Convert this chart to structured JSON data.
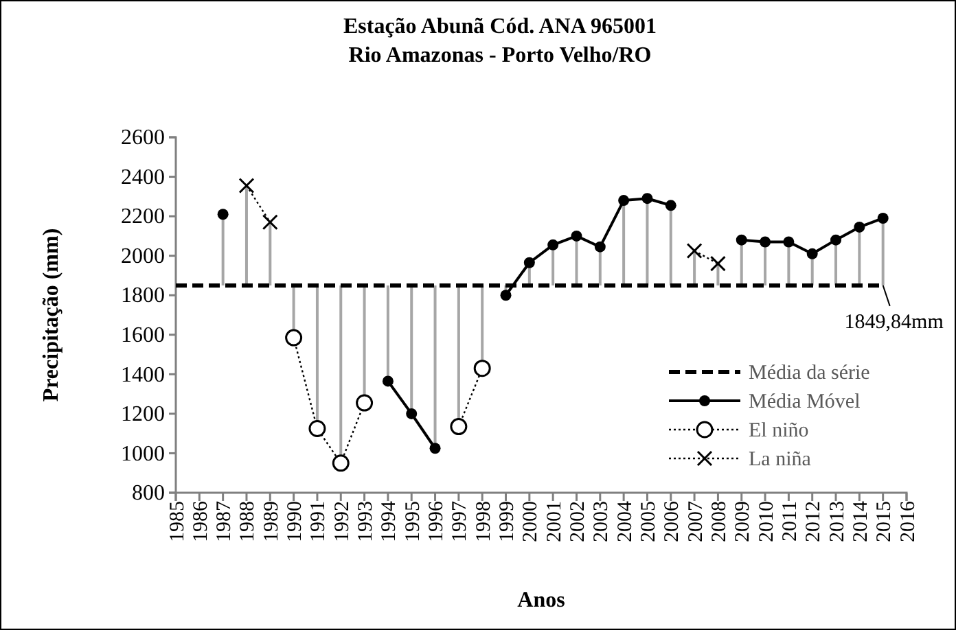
{
  "chart_data": {
    "type": "line",
    "title": "Estação Abunã Cód. ANA 965001",
    "subtitle": "Rio Amazonas  - Porto Velho/RO",
    "xlabel": "Anos",
    "ylabel": "Precipitação  (mm)",
    "xlim": [
      1985,
      2016
    ],
    "xticks": [
      1985,
      1986,
      1987,
      1988,
      1989,
      1990,
      1991,
      1992,
      1993,
      1994,
      1995,
      1996,
      1997,
      1998,
      1999,
      2000,
      2001,
      2002,
      2003,
      2004,
      2005,
      2006,
      2007,
      2008,
      2009,
      2010,
      2011,
      2012,
      2013,
      2014,
      2015,
      2016
    ],
    "ylim": [
      800,
      2600
    ],
    "yticks": [
      800,
      1000,
      1200,
      1400,
      1600,
      1800,
      2000,
      2200,
      2400,
      2600
    ],
    "grid": false,
    "legend": "bottom right",
    "ref_lines": [
      {
        "axis": "y",
        "value": 1849.84,
        "label": "Média da série",
        "color": "#000000",
        "line_style": "dashed"
      }
    ],
    "annotations": [
      {
        "text": "1849,84mm",
        "x": 2015,
        "y": 1849.84
      }
    ],
    "series": [
      {
        "name": "Média Móvel",
        "color": "#000000",
        "marker": "circle",
        "line_style": "solid",
        "x": [
          1987,
          1988,
          1993,
          1994,
          1995,
          1996,
          1997,
          1998,
          1999,
          2000,
          2001,
          2002,
          2003,
          2004,
          2005,
          2006,
          2007,
          2008,
          2009,
          2010,
          2011,
          2012,
          2013,
          2014,
          2015
        ],
        "values": [
          2210,
          null,
          null,
          1365,
          1200,
          1025,
          null,
          null,
          1800,
          1965,
          2055,
          2100,
          2045,
          2280,
          2290,
          2255,
          null,
          null,
          2080,
          2070,
          2070,
          2010,
          2080,
          2145,
          2190
        ],
        "errors": [
          [
            1849.84,
            2210
          ],
          null,
          null,
          [
            1365,
            1849.84
          ],
          [
            1200,
            1849.84
          ],
          [
            1025,
            1849.84
          ],
          null,
          null,
          [
            1800,
            1849.84
          ],
          [
            1849.84,
            1965
          ],
          [
            1849.84,
            2055
          ],
          [
            1849.84,
            2100
          ],
          [
            1849.84,
            2045
          ],
          [
            1849.84,
            2280
          ],
          [
            1849.84,
            2290
          ],
          [
            1849.84,
            2255
          ],
          null,
          null,
          [
            1849.84,
            2080
          ],
          [
            1849.84,
            2070
          ],
          [
            1849.84,
            2070
          ],
          [
            1849.84,
            2010
          ],
          [
            1849.84,
            2080
          ],
          [
            1849.84,
            2145
          ],
          [
            1849.84,
            2190
          ]
        ]
      },
      {
        "name": "El niño",
        "color": "#000000",
        "marker": "circle",
        "line_style": "dotted",
        "x": [
          1990,
          1991,
          1992,
          1993,
          1996,
          1997,
          1998
        ],
        "values": [
          1585,
          1125,
          950,
          1255,
          null,
          1135,
          1430
        ],
        "errors": [
          [
            1585,
            1849.84
          ],
          [
            1125,
            1849.84
          ],
          [
            950,
            1849.84
          ],
          [
            1255,
            1849.84
          ],
          null,
          [
            1135,
            1849.84
          ],
          [
            1430,
            1849.84
          ]
        ]
      },
      {
        "name": "La niña",
        "color": "#000000",
        "marker": "cross",
        "line_style": "dotted",
        "x": [
          1988,
          1989,
          1990,
          2007,
          2008
        ],
        "values": [
          2355,
          2170,
          null,
          2025,
          1960
        ],
        "errors": [
          [
            1849.84,
            2355
          ],
          [
            1849.84,
            2170
          ],
          null,
          [
            1849.84,
            2025
          ],
          [
            1849.84,
            1960
          ]
        ]
      }
    ]
  }
}
